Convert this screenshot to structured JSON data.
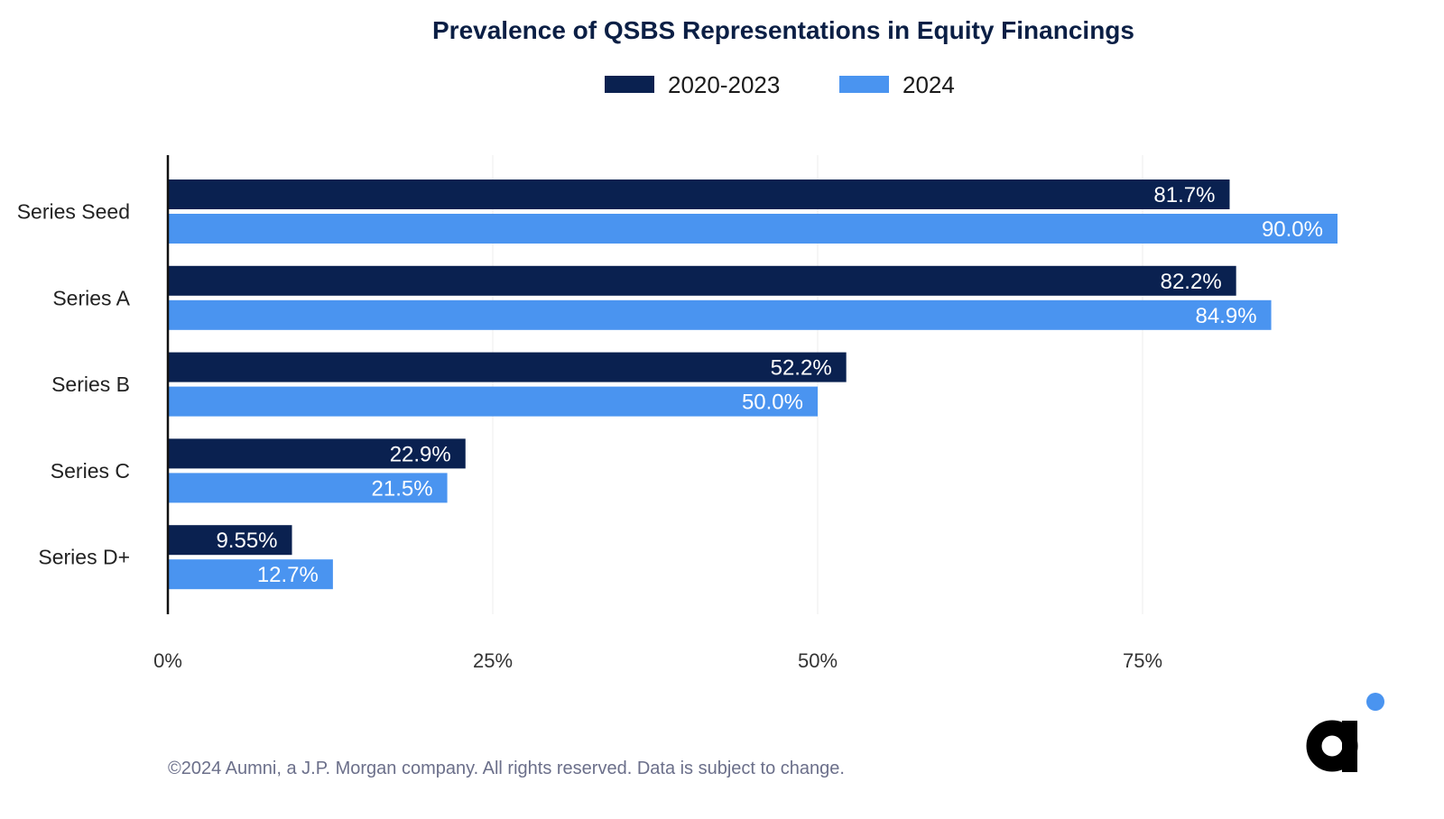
{
  "chart_data": {
    "type": "bar",
    "orientation": "horizontal",
    "title": "Prevalence of QSBS Representations in Equity Financings",
    "categories": [
      "Series Seed",
      "Series A",
      "Series B",
      "Series C",
      "Series D+"
    ],
    "series": [
      {
        "name": "2020-2023",
        "color": "#0a2150",
        "values": [
          81.7,
          82.2,
          52.2,
          22.9,
          9.55
        ],
        "labels": [
          "81.7%",
          "82.2%",
          "52.2%",
          "22.9%",
          "9.55%"
        ]
      },
      {
        "name": "2024",
        "color": "#4a94f0",
        "values": [
          90.0,
          84.9,
          50.0,
          21.5,
          12.7
        ],
        "labels": [
          "90.0%",
          "84.9%",
          "50.0%",
          "21.5%",
          "12.7%"
        ]
      }
    ],
    "x_ticks": [
      0,
      25,
      50,
      75
    ],
    "x_tick_labels": [
      "0%",
      "25%",
      "50%",
      "75%"
    ],
    "xlim": [
      0,
      100
    ],
    "grid": true,
    "legend_position": "top-center"
  },
  "footer": "©2024 Aumni, a J.P. Morgan company. All rights reserved. Data is subject to change.",
  "logo": {
    "icon": "aumni-logo-icon",
    "dot_color": "#4a94f0",
    "mark_color": "#000000"
  }
}
